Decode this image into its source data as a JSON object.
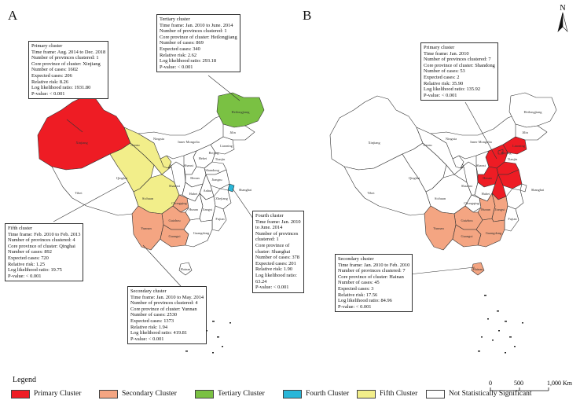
{
  "panels": {
    "a_label": "A",
    "b_label": "B"
  },
  "colors": {
    "primary": "#ee1c24",
    "secondary": "#f4a582",
    "tertiary": "#7ac143",
    "fourth": "#29b6d8",
    "fifth": "#f2ee8a",
    "not_significant": "#ffffff",
    "border": "#333333"
  },
  "north_arrow": {
    "label": "N",
    "icon": "north-arrow-icon"
  },
  "scale_bar": {
    "ticks": [
      "0",
      "500",
      "1,000 Km"
    ]
  },
  "legend": {
    "title": "Legend",
    "items": [
      {
        "label": "Primary Cluster",
        "color": "#ee1c24"
      },
      {
        "label": "Secondary Cluster",
        "color": "#f4a582"
      },
      {
        "label": "Tertiary Cluster",
        "color": "#7ac143"
      },
      {
        "label": "Fourth Cluster",
        "color": "#29b6d8"
      },
      {
        "label": "Fifth Cluster",
        "color": "#f2ee8a"
      },
      {
        "label": "Not Statistically Significant",
        "color": "#ffffff"
      }
    ]
  },
  "map_a": {
    "province_labels": [
      "Xinjiang",
      "Tibet",
      "Qinghai",
      "Gansu",
      "Ningxia",
      "Inner Mongolia",
      "Heilongjiang",
      "Jilin",
      "Liaoning",
      "Beijing",
      "Tianjin",
      "Hebei",
      "Shanxi",
      "Shaanxi",
      "Shandong",
      "Henan",
      "Jiangsu",
      "Anhui",
      "Shanghai",
      "Hubei",
      "Zhejiang",
      "Sichuan",
      "Chongqing",
      "Hunan",
      "Jiangxi",
      "Fujian",
      "Guizhou",
      "Yunnan",
      "Guangxi",
      "Guangdong",
      "Hainan"
    ],
    "boxes": {
      "primary": [
        "Primary cluster",
        "Time frame: Aug. 2014 to Dec. 2018",
        "Number of provinces clustered: 1",
        "Core province of cluster: Xinjiang",
        "Number of cases: 1602",
        "Expected cases: 206",
        "Relative risk: 8.26",
        "Log likelihood ratio: 1931.80",
        "P-value: < 0.001"
      ],
      "tertiary": [
        "Tertiary cluster",
        "Time frame: Jan. 2010 to June. 2014",
        "Number of provinces clustered: 1",
        "Core province of cluster: Heilongjiang",
        "Number of cases: 869",
        "Expected cases: 340",
        "Relative risk: 2.62",
        "Log likelihood ratio: 293.18",
        "P-value: < 0.001"
      ],
      "fifth": [
        "Fifth cluster",
        "Time frame: Feb. 2010 to Feb. 2013",
        "Number of provinces clustered: 4",
        "Core province of cluster: Qinghai",
        "Number of cases: 892",
        "Expected cases: 720",
        "Relative risk: 1.25",
        "Log likelihood ratio: 19.75",
        "P-value: < 0.001"
      ],
      "fourth": [
        "Fourth cluster",
        "Time frame: Jan. 2010",
        "to June. 2014",
        "Number of provinces",
        "clustered: 1",
        "Core province of",
        "cluster: Shanghai",
        "Number of cases: 378",
        "Expected cases: 201",
        "Relative risk: 1.90",
        "Log likelihood ratio:",
        "63.24",
        "P-value: < 0.001"
      ],
      "secondary": [
        "Secondary cluster",
        "Time frame: Jan. 2010 to May. 2014",
        "Number of provinces clustered: 4",
        "Core province of cluster: Yunnan",
        "Number of cases: 2530",
        "Expected cases: 1373",
        "Relative risk: 1.94",
        "Log likelihood ratio: 419.81",
        "P-value: < 0.001"
      ]
    }
  },
  "map_b": {
    "province_labels": [
      "Xinjiang",
      "Tibet",
      "Qinghai",
      "Gansu",
      "Ningxia",
      "Inner Mongolia",
      "Heilongjiang",
      "Jilin",
      "Liaoning",
      "Beijing",
      "Tianjin",
      "Shanxi",
      "Shaanxi",
      "Henan",
      "Shanghai",
      "Hubei",
      "Sichuan",
      "Chongqing",
      "Hunan",
      "Jiangxi",
      "Fujian",
      "Guizhou",
      "Yunnan",
      "Guangxi",
      "Guangdong",
      "Hainan"
    ],
    "boxes": {
      "primary": [
        "Primary cluster",
        "Time frame: Jan. 2010",
        "Number of provinces clustered: 7",
        "Core province of cluster: Shandong",
        "Number of cases: 53",
        "Expected cases: 2",
        "Relative risk: 35.90",
        "Log likelihood ratio: 135.92",
        "P-value: < 0.001"
      ],
      "secondary": [
        "Secondary cluster",
        "Time frame: Jan. 2010 to Feb. 2010",
        "Number of provinces clustered: 7",
        "Core province of cluster: Hainan",
        "Number of cases: 45",
        "Expected cases: 3",
        "Relative risk: 17.56",
        "Log likelihood ratio: 84.96",
        "P-value: < 0.001"
      ]
    }
  }
}
